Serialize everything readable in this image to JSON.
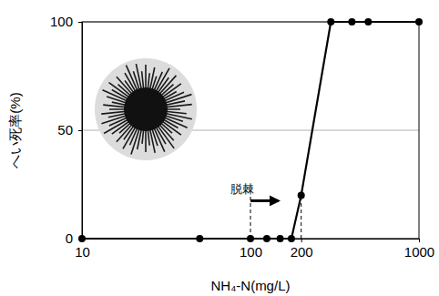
{
  "chart_data": {
    "type": "line",
    "x_label": "NH₄-N(mg/L)",
    "y_label": "へい死率(%)",
    "x": [
      10,
      50,
      100,
      125,
      150,
      175,
      200,
      300,
      400,
      500,
      1000
    ],
    "values": [
      0,
      0,
      0,
      0,
      0,
      0,
      20,
      100,
      100,
      100,
      100
    ],
    "color": "#000000",
    "marker": "circle",
    "log": "x",
    "xlim": [
      10,
      1000
    ],
    "xticks": [
      10,
      100,
      200,
      1000
    ],
    "ylim": [
      0,
      100
    ],
    "yticks": [
      0,
      50,
      100
    ],
    "grid": true,
    "annotations": [
      {
        "text": "脱棘",
        "x": 100
      }
    ]
  }
}
